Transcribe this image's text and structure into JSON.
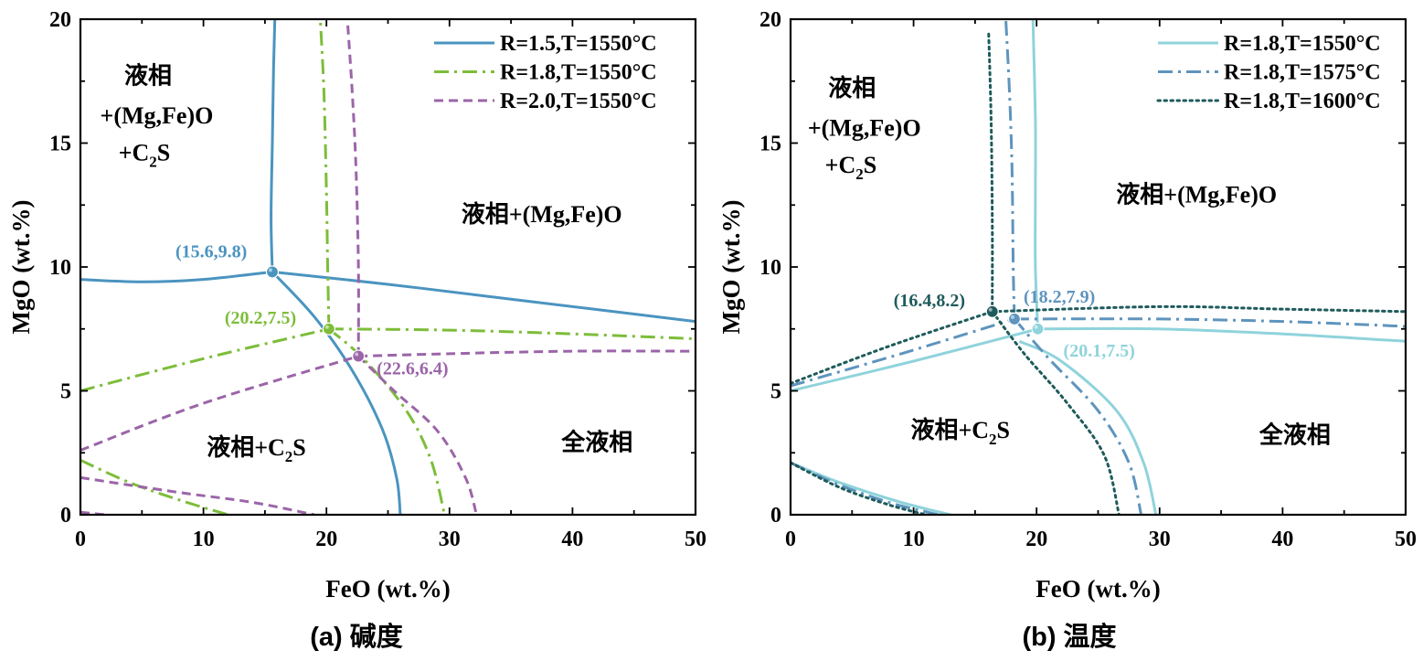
{
  "chart_data": [
    {
      "type": "line",
      "panel": "a",
      "caption": "(a) 碱度",
      "xlabel": "FeO (wt.%)",
      "ylabel": "MgO (wt.%)",
      "xlim": [
        0,
        50
      ],
      "ylim": [
        0,
        20
      ],
      "xticks": [
        0,
        10,
        20,
        30,
        40,
        50
      ],
      "yticks": [
        0,
        5,
        10,
        15,
        20
      ],
      "legend_position": "top-right",
      "series": [
        {
          "name": "R=1.5,T=1550°C",
          "color": "#4a94c0",
          "dash": "solid",
          "curves": [
            [
              [
                15.6,
                9.8
              ],
              [
                15.5,
                12
              ],
              [
                15.6,
                15
              ],
              [
                15.7,
                18
              ],
              [
                15.8,
                20
              ]
            ],
            [
              [
                0,
                9.5
              ],
              [
                5,
                9.4
              ],
              [
                10,
                9.5
              ],
              [
                15.6,
                9.8
              ]
            ],
            [
              [
                15.6,
                9.8
              ],
              [
                25,
                9.3
              ],
              [
                35,
                8.7
              ],
              [
                50,
                7.8
              ]
            ],
            [
              [
                15.6,
                9.8
              ],
              [
                19,
                8
              ],
              [
                22,
                5.9
              ],
              [
                24.5,
                3.5
              ],
              [
                25.7,
                1.5
              ],
              [
                26,
                0
              ]
            ]
          ],
          "point": {
            "x": 15.6,
            "y": 9.8,
            "label": "(15.6,9.8)"
          }
        },
        {
          "name": "R=1.8,T=1550°C",
          "color": "#7dbd3a",
          "dash": "dashdot",
          "curves": [
            [
              [
                20.2,
                7.5
              ],
              [
                20.1,
                10
              ],
              [
                20.0,
                13
              ],
              [
                19.8,
                17
              ],
              [
                19.5,
                20
              ]
            ],
            [
              [
                0,
                5
              ],
              [
                10,
                6.3
              ],
              [
                20.2,
                7.5
              ]
            ],
            [
              [
                20.2,
                7.5
              ],
              [
                30,
                7.45
              ],
              [
                40,
                7.3
              ],
              [
                50,
                7.1
              ]
            ],
            [
              [
                20.2,
                7.5
              ],
              [
                23,
                6.3
              ],
              [
                26.5,
                4.2
              ],
              [
                28.5,
                2.2
              ],
              [
                29.6,
                0
              ]
            ],
            [
              [
                0,
                2.2
              ],
              [
                4,
                1.3
              ],
              [
                8,
                0.6
              ],
              [
                12,
                0
              ]
            ]
          ],
          "point": {
            "x": 20.2,
            "y": 7.5,
            "label": "(20.2,7.5)"
          }
        },
        {
          "name": "R=2.0,T=1550°C",
          "color": "#9b65a8",
          "dash": "dashed",
          "curves": [
            [
              [
                22.6,
                6.4
              ],
              [
                22.6,
                10
              ],
              [
                22.4,
                14
              ],
              [
                22.1,
                17
              ],
              [
                21.7,
                20
              ]
            ],
            [
              [
                0,
                2.6
              ],
              [
                10,
                4.5
              ],
              [
                22.6,
                6.4
              ]
            ],
            [
              [
                22.6,
                6.4
              ],
              [
                30,
                6.5
              ],
              [
                40,
                6.6
              ],
              [
                50,
                6.6
              ]
            ],
            [
              [
                22.6,
                6.4
              ],
              [
                25.5,
                5
              ],
              [
                29,
                3.4
              ],
              [
                31.3,
                1.5
              ],
              [
                32.2,
                0
              ]
            ],
            [
              [
                0,
                1.5
              ],
              [
                8,
                0.9
              ],
              [
                14,
                0.5
              ],
              [
                19,
                0
              ]
            ],
            [
              [
                0,
                0.1
              ],
              [
                2,
                0
              ]
            ]
          ],
          "point": {
            "x": 22.6,
            "y": 6.4,
            "label": "(22.6,6.4)"
          }
        }
      ],
      "regions": [
        {
          "text": "液相",
          "x": 5.5,
          "y": 17.4
        },
        {
          "text": "+(Mg,Fe)O",
          "x": 6.2,
          "y": 15.8
        },
        {
          "text": "+C",
          "sub": "2",
          "tail": "S",
          "x": 5.2,
          "y": 14.3
        },
        {
          "text": "液相+(Mg,Fe)O",
          "x": 37.5,
          "y": 11.8
        },
        {
          "text": "液相+C",
          "sub": "2",
          "tail": "S",
          "x": 14.3,
          "y": 2.4
        },
        {
          "text": "全液相",
          "x": 42.0,
          "y": 2.6
        }
      ]
    },
    {
      "type": "line",
      "panel": "b",
      "caption": "(b) 温度",
      "xlabel": "FeO (wt.%)",
      "ylabel": "MgO (wt.%)",
      "xlim": [
        0,
        50
      ],
      "ylim": [
        0,
        20
      ],
      "xticks": [
        0,
        10,
        20,
        30,
        40,
        50
      ],
      "yticks": [
        0,
        5,
        10,
        15,
        20
      ],
      "legend_position": "top-right",
      "series": [
        {
          "name": "R=1.8,T=1550°C",
          "color": "#8fd3dc",
          "dash": "solid",
          "curves": [
            [
              [
                20.1,
                7.5
              ],
              [
                19.9,
                10
              ],
              [
                19.9,
                13
              ],
              [
                19.9,
                16
              ],
              [
                19.7,
                20
              ]
            ],
            [
              [
                0,
                5.0
              ],
              [
                10,
                6.2
              ],
              [
                20.1,
                7.5
              ]
            ],
            [
              [
                20.1,
                7.5
              ],
              [
                30,
                7.5
              ],
              [
                40,
                7.3
              ],
              [
                50,
                7.0
              ]
            ],
            [
              [
                18.6,
                7.0
              ],
              [
                22,
                6.2
              ],
              [
                26.5,
                4.2
              ],
              [
                28.7,
                2.1
              ],
              [
                29.7,
                0
              ]
            ],
            [
              [
                0,
                2.1
              ],
              [
                4,
                1.3
              ],
              [
                9,
                0.5
              ],
              [
                13,
                0
              ]
            ]
          ],
          "point": {
            "x": 20.1,
            "y": 7.5,
            "label": "(20.1,7.5)"
          }
        },
        {
          "name": "R=1.8,T=1575°C",
          "color": "#5e94bd",
          "dash": "dashdot",
          "curves": [
            [
              [
                18.2,
                7.9
              ],
              [
                18.1,
                10
              ],
              [
                18.0,
                14
              ],
              [
                17.8,
                17
              ],
              [
                17.5,
                20
              ]
            ],
            [
              [
                0,
                5.2
              ],
              [
                9,
                6.5
              ],
              [
                18.2,
                7.9
              ]
            ],
            [
              [
                18.2,
                7.9
              ],
              [
                30,
                7.9
              ],
              [
                40,
                7.8
              ],
              [
                50,
                7.6
              ]
            ],
            [
              [
                18.2,
                7.9
              ],
              [
                21,
                6.3
              ],
              [
                25,
                4.2
              ],
              [
                27.5,
                2.1
              ],
              [
                28.5,
                0
              ]
            ],
            [
              [
                0,
                2.1
              ],
              [
                4,
                1.2
              ],
              [
                8,
                0.5
              ],
              [
                12,
                0
              ]
            ]
          ],
          "point": {
            "x": 18.2,
            "y": 7.9,
            "label": "(18.2,7.9)"
          }
        },
        {
          "name": "R=1.8,T=1600°C",
          "color": "#1f5b5b",
          "dash": "dotted",
          "curves": [
            [
              [
                16.4,
                8.2
              ],
              [
                16.4,
                12
              ],
              [
                16.3,
                16
              ],
              [
                16.1,
                19.5
              ]
            ],
            [
              [
                0,
                5.3
              ],
              [
                8,
                6.8
              ],
              [
                16.4,
                8.2
              ]
            ],
            [
              [
                16.4,
                8.2
              ],
              [
                30,
                8.4
              ],
              [
                40,
                8.3
              ],
              [
                50,
                8.2
              ]
            ],
            [
              [
                16.4,
                8.2
              ],
              [
                19,
                6.5
              ],
              [
                22.5,
                4.5
              ],
              [
                25.5,
                2.4
              ],
              [
                26.7,
                0
              ]
            ],
            [
              [
                0,
                2.1
              ],
              [
                4,
                1.1
              ],
              [
                8,
                0.4
              ],
              [
                11,
                0
              ]
            ]
          ],
          "point": {
            "x": 16.4,
            "y": 8.2,
            "label": "(16.4,8.2)"
          }
        }
      ],
      "regions": [
        {
          "text": "液相",
          "x": 5.0,
          "y": 16.9
        },
        {
          "text": "+(Mg,Fe)O",
          "x": 6.0,
          "y": 15.3
        },
        {
          "text": "+C",
          "sub": "2",
          "tail": "S",
          "x": 4.9,
          "y": 13.8
        },
        {
          "text": "液相+(Mg,Fe)O",
          "x": 33.0,
          "y": 12.6
        },
        {
          "text": "液相+C",
          "sub": "2",
          "tail": "S",
          "x": 13.8,
          "y": 3.1
        },
        {
          "text": "全液相",
          "x": 41.0,
          "y": 2.9
        }
      ]
    }
  ]
}
